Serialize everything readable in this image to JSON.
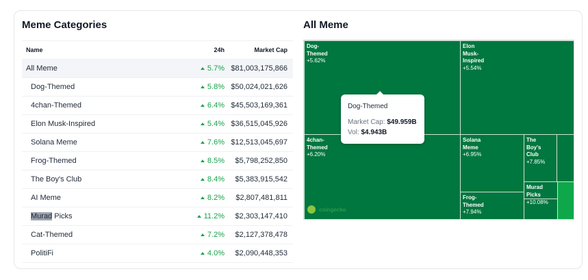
{
  "left": {
    "title": "Meme Categories",
    "headers": {
      "name": "Name",
      "change": "24h",
      "mcap": "Market Cap"
    },
    "rows": [
      {
        "name": "All Meme",
        "change": "5.7%",
        "mcap": "$81,003,175,866"
      },
      {
        "name": "Dog-Themed",
        "change": "5.8%",
        "mcap": "$50,024,021,626"
      },
      {
        "name": "4chan-Themed",
        "change": "6.4%",
        "mcap": "$45,503,169,361"
      },
      {
        "name": "Elon Musk-Inspired",
        "change": "5.4%",
        "mcap": "$36,515,045,926"
      },
      {
        "name": "Solana Meme",
        "change": "7.6%",
        "mcap": "$12,513,045,697"
      },
      {
        "name": "Frog-Themed",
        "change": "8.5%",
        "mcap": "$5,798,252,850"
      },
      {
        "name": "The Boy's Club",
        "change": "8.4%",
        "mcap": "$5,383,915,542"
      },
      {
        "name": "AI Meme",
        "change": "8.2%",
        "mcap": "$2,807,481,811"
      },
      {
        "name_highlight": "Murad",
        "name_rest": " Picks",
        "change": "11.2%",
        "mcap": "$2,303,147,410"
      },
      {
        "name": "Cat-Themed",
        "change": "7.2%",
        "mcap": "$2,127,378,478"
      },
      {
        "name": "PolitiFi",
        "change": "4.0%",
        "mcap": "$2,090,448,353"
      }
    ]
  },
  "right": {
    "title": "All Meme",
    "cells": {
      "dog": {
        "l1": "Dog-",
        "l2": "Themed",
        "pct": "+5.62%"
      },
      "elon": {
        "l1": "Elon",
        "l2": "Musk-",
        "l3": "Inspired",
        "pct": "+5.54%"
      },
      "chan": {
        "l1": "4chan-",
        "l2": "Themed",
        "pct": "+6.20%"
      },
      "solana": {
        "l1": "Solana",
        "l2": "Meme",
        "pct": "+6.95%"
      },
      "frog": {
        "l1": "Frog-",
        "l2": "Themed",
        "pct": "+7.94%"
      },
      "boys": {
        "l1": "The",
        "l2": "Boy's",
        "l3": "Club",
        "pct": "+7.85%"
      },
      "murad": {
        "l1": "Murad",
        "l2": "Picks",
        "pct": "+10.08%"
      }
    },
    "tooltip": {
      "title": "Dog-Themed",
      "mcap_label": "Market Cap:",
      "mcap": "$49.959B",
      "vol_label": "Vol:",
      "vol": "$4.943B"
    },
    "logo": "coingecko",
    "colors": {
      "base": "#00773e",
      "bright": "#0ea84a"
    }
  }
}
